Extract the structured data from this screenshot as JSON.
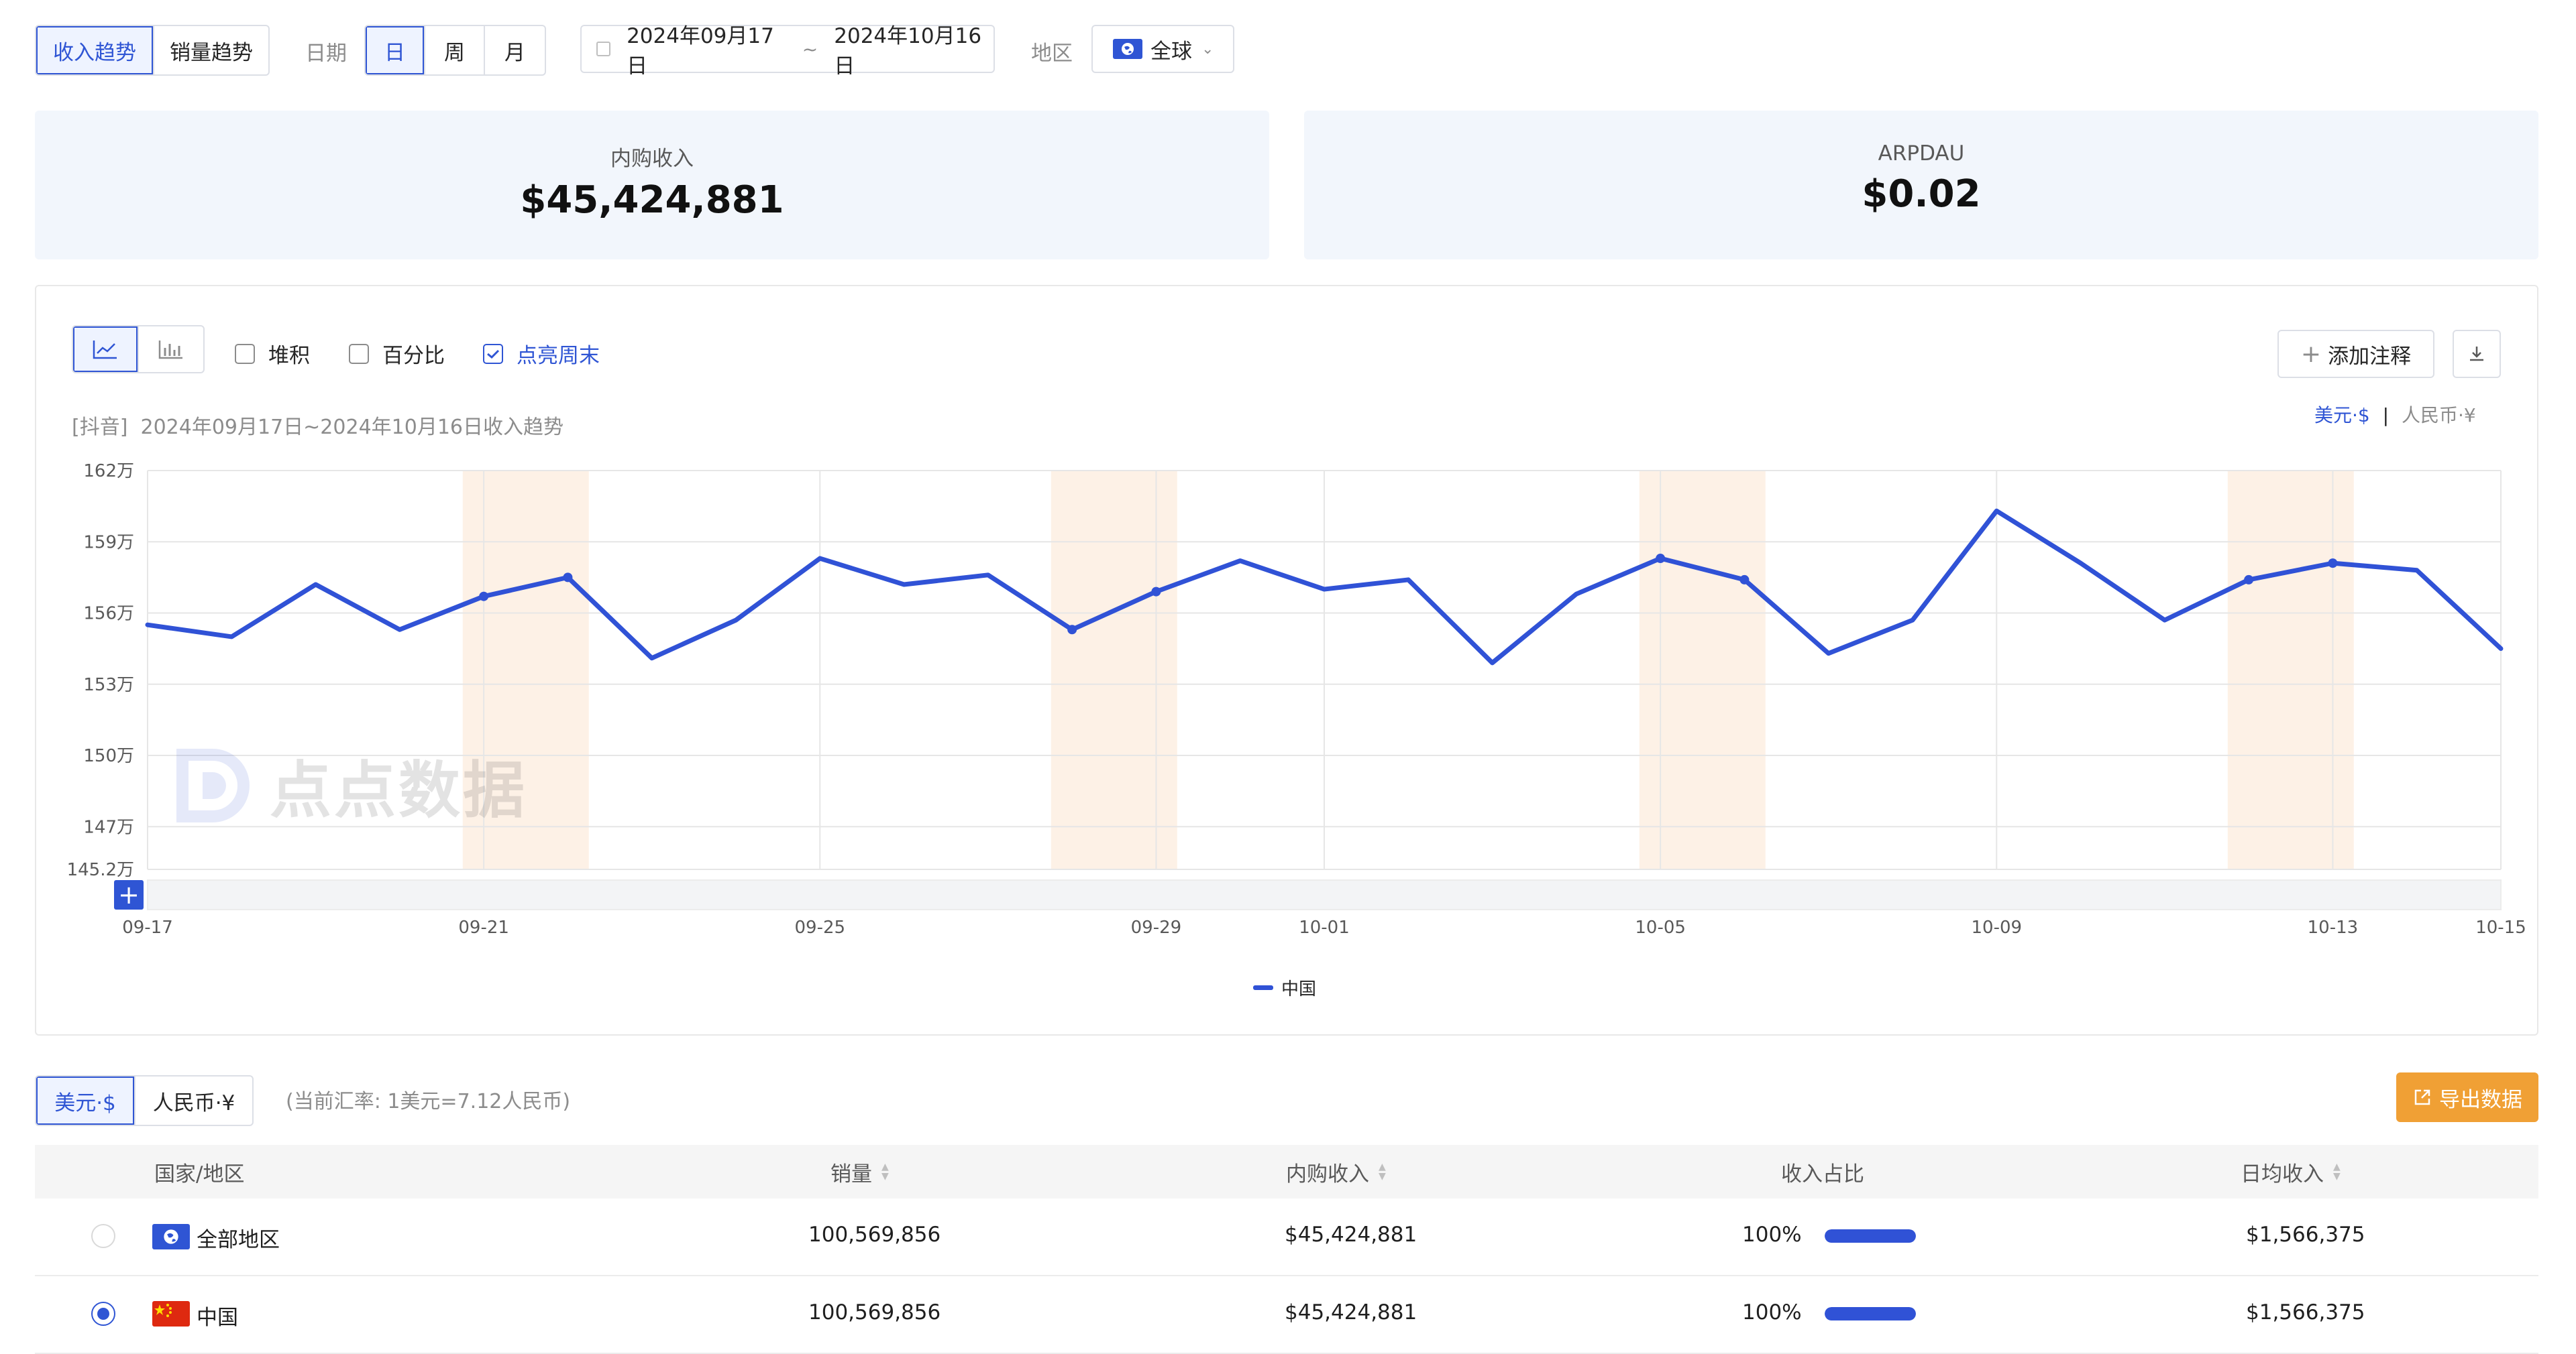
{
  "toolbar": {
    "tabs": [
      "收入趋势",
      "销量趋势"
    ],
    "date_label": "日期",
    "granularity": [
      "日",
      "周",
      "月"
    ],
    "date_start": "2024年09月17日",
    "date_sep": "~",
    "date_end": "2024年10月16日",
    "region_label": "地区",
    "region_value": "全球"
  },
  "cards": [
    {
      "label": "内购收入",
      "value": "$45,424,881"
    },
    {
      "label": "ARPDAU",
      "value": "$0.02"
    }
  ],
  "chart_toolbar": {
    "stack": "堆积",
    "percent": "百分比",
    "weekend": "点亮周末",
    "add_note": "添加注释",
    "currency_usd": "美元·$",
    "currency_sep": "|",
    "currency_cny": "人民币·¥"
  },
  "chart_subtitle": "[抖音]  2024年09月17日~2024年10月16日收入趋势",
  "watermark": "点点数据",
  "chart_data": {
    "type": "line",
    "x": [
      "09-17",
      "09-18",
      "09-19",
      "09-20",
      "09-21",
      "09-22",
      "09-23",
      "09-24",
      "09-25",
      "09-26",
      "09-27",
      "09-28",
      "09-29",
      "09-30",
      "10-01",
      "10-02",
      "10-03",
      "10-04",
      "10-05",
      "10-06",
      "10-07",
      "10-08",
      "10-09",
      "10-10",
      "10-11",
      "10-12",
      "10-13",
      "10-14",
      "10-15"
    ],
    "xticks": [
      "09-17",
      "09-21",
      "09-25",
      "09-29",
      "10-01",
      "10-05",
      "10-09",
      "10-13",
      "10-15"
    ],
    "yticks": [
      "162万",
      "159万",
      "156万",
      "153万",
      "150万",
      "147万",
      "145.2万"
    ],
    "ylim": [
      145.2,
      162
    ],
    "unit": "万",
    "weekends": [
      [
        "09-21",
        "09-22"
      ],
      [
        "09-28",
        "09-29"
      ],
      [
        "10-05",
        "10-06"
      ],
      [
        "10-12",
        "10-13"
      ]
    ],
    "series": [
      {
        "name": "中国",
        "color": "#3052d6",
        "values": [
          155.5,
          155.0,
          157.2,
          155.3,
          156.7,
          157.5,
          154.1,
          155.7,
          158.3,
          157.2,
          157.6,
          155.3,
          156.9,
          158.2,
          157.0,
          157.4,
          153.9,
          156.8,
          158.3,
          157.4,
          154.3,
          155.7,
          160.3,
          158.1,
          155.7,
          157.4,
          158.1,
          157.8,
          154.5
        ]
      }
    ],
    "grid": true,
    "legend_position": "bottom-center"
  },
  "table_controls": {
    "currency_usd": "美元·$",
    "currency_cny": "人民币·¥",
    "rate_note": "(当前汇率: 1美元=7.12人民币)",
    "export": "导出数据"
  },
  "table": {
    "headers": [
      "国家/地区",
      "销量",
      "内购收入",
      "收入占比",
      "日均收入"
    ],
    "rows": [
      {
        "region": "全部地区",
        "sales": "100,569,856",
        "revenue": "$45,424,881",
        "share": "100%",
        "share_value": 1.0,
        "daily": "$1,566,375",
        "selected": false
      },
      {
        "region": "中国",
        "sales": "100,569,856",
        "revenue": "$45,424,881",
        "share": "100%",
        "share_value": 1.0,
        "daily": "$1,566,375",
        "selected": true
      }
    ]
  },
  "colors": {
    "accent": "#2f55d4",
    "weekend": "#fdf1e6",
    "export": "#f0a035"
  }
}
